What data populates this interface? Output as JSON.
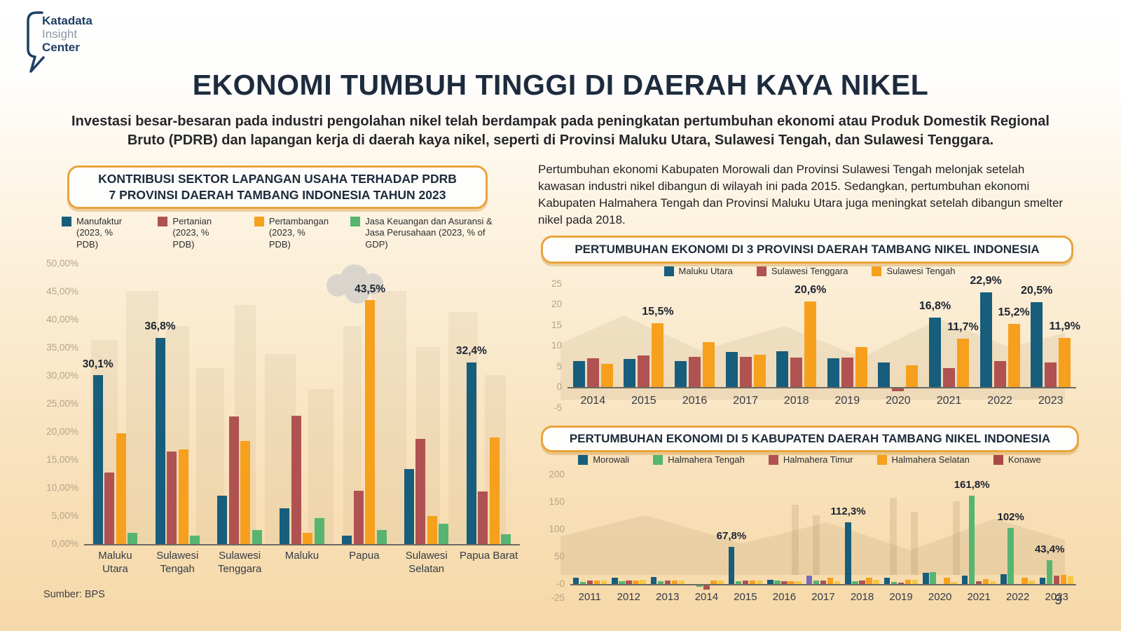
{
  "logo": {
    "line1": "Katadata",
    "line2": "Insight",
    "line3": "Center"
  },
  "header": {
    "title": "EKONOMI TUMBUH TINGGI DI DAERAH KAYA NIKEL",
    "subtitle": "Investasi besar-besaran pada industri pengolahan nikel telah berdampak pada peningkatan pertumbuhan ekonomi atau Produk Domestik Regional Bruto (PDRB) dan lapangan kerja di daerah kaya nikel, seperti di Provinsi Maluku Utara, Sulawesi Tengah, dan Sulawesi Tenggara."
  },
  "right_panel": {
    "paragraph": "Pertumbuhan ekonomi Kabupaten Morowali dan Provinsi Sulawesi Tengah melonjak setelah kawasan industri nikel dibangun di wilayah ini pada 2015. Sedangkan, pertumbuhan ekonomi Kabupaten Halmahera Tengah dan Provinsi Maluku Utara juga meningkat setelah dibangun smelter nikel pada 2018."
  },
  "footer": {
    "source": "Sumber: BPS",
    "page_number": "9"
  },
  "colors": {
    "navy_text": "#1d2b3c",
    "box_border": "#e9a43c",
    "bar_blue": "#175d7c",
    "bar_maroon": "#b05251",
    "bar_orange": "#f6a01d",
    "bar_green": "#57b571",
    "bar_yellow": "#f5c843",
    "bar_purple": "#7a6bc0",
    "konawe_legend_red": "#a84a44"
  },
  "chart_data": [
    {
      "id": "chart-pdrb",
      "type": "bar",
      "title": "KONTRIBUSI SEKTOR LAPANGAN USAHA TERHADAP PDRB",
      "title_line2": "7 PROVINSI DAERAH TAMBANG INDONESIA TAHUN 2023",
      "ylim": [
        0,
        50
      ],
      "grid": false,
      "legend_position": "top",
      "yticks": [
        {
          "label": "50,00%",
          "v": 50
        },
        {
          "label": "45,00%",
          "v": 45
        },
        {
          "label": "40,00%",
          "v": 40
        },
        {
          "label": "35,00%",
          "v": 35
        },
        {
          "label": "30,00%",
          "v": 30
        },
        {
          "label": "25,00%",
          "v": 25
        },
        {
          "label": "20,00%",
          "v": 20
        },
        {
          "label": "15,00%",
          "v": 15
        },
        {
          "label": "10,00%",
          "v": 10
        },
        {
          "label": "5,00%",
          "v": 5
        },
        {
          "label": "0,00%",
          "v": 0
        }
      ],
      "categories": [
        "Maluku Utara",
        "Sulawesi Tengah",
        "Sulawesi Tenggara",
        "Maluku",
        "Papua",
        "Sulawesi Selatan",
        "Papua Barat"
      ],
      "series": [
        {
          "name": "Manufaktur",
          "sub": "(2023, % PDB)",
          "color": "#175d7c",
          "values": [
            30.1,
            36.8,
            8.6,
            6.4,
            1.5,
            13.4,
            32.4
          ]
        },
        {
          "name": "Pertanian",
          "sub": "(2023, % PDB)",
          "color": "#b05251",
          "values": [
            12.8,
            16.5,
            22.7,
            22.9,
            9.5,
            18.8,
            9.4
          ]
        },
        {
          "name": "Pertambangan",
          "sub": "(2023, % PDB)",
          "color": "#f6a01d",
          "values": [
            19.7,
            16.9,
            18.4,
            2.0,
            43.5,
            5.0,
            19.0
          ]
        },
        {
          "name": "Jasa Keuangan dan Asuransi &",
          "sub": "Jasa Perusahaan (2023, % of GDP)",
          "color": "#57b571",
          "values": [
            2.0,
            1.5,
            2.5,
            4.6,
            2.5,
            3.6,
            1.8
          ]
        }
      ],
      "annotations": [
        {
          "ci": 0,
          "si": 0,
          "text": "30,1%"
        },
        {
          "ci": 1,
          "si": 0,
          "text": "36,8%"
        },
        {
          "ci": 4,
          "si": 2,
          "text": "43,5%"
        },
        {
          "ci": 6,
          "si": 0,
          "text": "32,4%"
        }
      ]
    },
    {
      "id": "chart-3provinsi",
      "type": "bar",
      "title": "PERTUMBUHAN EKONOMI DI 3 PROVINSI DAERAH TAMBANG NIKEL INDONESIA",
      "ylim": [
        -5,
        25
      ],
      "grid": false,
      "legend_position": "top",
      "yticks": [
        {
          "label": "25",
          "v": 25
        },
        {
          "label": "20",
          "v": 20
        },
        {
          "label": "15",
          "v": 15
        },
        {
          "label": "10",
          "v": 10
        },
        {
          "label": "5",
          "v": 5
        },
        {
          "label": "0",
          "v": 0
        },
        {
          "label": "-5",
          "v": -5
        }
      ],
      "categories": [
        "2014",
        "2015",
        "2016",
        "2017",
        "2018",
        "2019",
        "2020",
        "2021",
        "2022",
        "2023"
      ],
      "series": [
        {
          "name": "Maluku Utara",
          "color": "#175d7c",
          "values": [
            6.2,
            6.8,
            6.3,
            8.5,
            8.6,
            6.9,
            5.9,
            16.8,
            22.9,
            20.5
          ]
        },
        {
          "name": "Sulawesi Tenggara",
          "color": "#b05251",
          "values": [
            7.0,
            7.6,
            7.3,
            7.3,
            7.1,
            7.2,
            -0.6,
            4.6,
            6.2,
            5.9
          ]
        },
        {
          "name": "Sulawesi Tengah",
          "color": "#f6a01d",
          "values": [
            5.6,
            15.5,
            10.9,
            7.8,
            20.6,
            9.7,
            5.3,
            11.7,
            15.2,
            11.9
          ]
        }
      ],
      "annotations": [
        {
          "ci": 1,
          "si": 2,
          "text": "15,5%"
        },
        {
          "ci": 4,
          "si": 2,
          "text": "20,6%"
        },
        {
          "ci": 7,
          "si": 0,
          "text": "16,8%"
        },
        {
          "ci": 7,
          "si": 2,
          "text": "11,7%"
        },
        {
          "ci": 8,
          "si": 0,
          "text": "22,9%"
        },
        {
          "ci": 8,
          "si": 2,
          "text": "15,2%"
        },
        {
          "ci": 9,
          "si": 0,
          "text": "20,5%"
        },
        {
          "ci": 9,
          "si": 2,
          "text": "11,9%"
        }
      ]
    },
    {
      "id": "chart-5kabupaten",
      "type": "bar",
      "title": "PERTUMBUHAN EKONOMI DI 5 KABUPATEN DAERAH TAMBANG NIKEL INDONESIA",
      "ylim": [
        -25,
        200
      ],
      "grid": false,
      "legend_position": "top",
      "yticks": [
        {
          "label": "200",
          "v": 200
        },
        {
          "label": "150",
          "v": 150
        },
        {
          "label": "100",
          "v": 100
        },
        {
          "label": "50",
          "v": 50
        },
        {
          "label": "-0",
          "v": 0
        },
        {
          "label": "-25",
          "v": -25
        }
      ],
      "categories": [
        "2011",
        "2012",
        "2013",
        "2014",
        "2015",
        "2016",
        "2017",
        "2018",
        "2019",
        "2020",
        "2021",
        "2022",
        "2023"
      ],
      "series": [
        {
          "name": "Morowali",
          "color": "#175d7c",
          "values": [
            12,
            12,
            13,
            0,
            67.8,
            8,
            15,
            112.3,
            12,
            20,
            16,
            18,
            12
          ]
        },
        {
          "name": "Halmahera Tengah",
          "color": "#57b571",
          "values": [
            4,
            5,
            5,
            -3,
            5,
            7,
            6,
            5,
            4,
            22,
            161.8,
            102,
            43.4
          ]
        },
        {
          "name": "Halmahera Timur",
          "color": "#b05251",
          "values": [
            6,
            6,
            6,
            -8,
            6,
            5,
            7,
            6,
            3,
            0,
            5,
            0,
            15
          ]
        },
        {
          "name": "Halmahera Selatan",
          "color": "#f6a01d",
          "values": [
            6,
            6,
            6,
            6,
            6,
            5,
            12,
            12,
            8,
            12,
            9,
            12,
            17
          ]
        },
        {
          "name": "Konawe",
          "color": "#f5c843",
          "legend_color": "#a84a44",
          "values": [
            7,
            8,
            6,
            7,
            6,
            5,
            5,
            8,
            8,
            4,
            5,
            7,
            14
          ]
        }
      ],
      "overrides": [
        {
          "ci": 6,
          "si": 0,
          "color": "#7a6bc0"
        }
      ],
      "annotations": [
        {
          "ci": 4,
          "si": 0,
          "text": "67,8%"
        },
        {
          "ci": 7,
          "si": 0,
          "text": "112,3%"
        },
        {
          "ci": 10,
          "si": 1,
          "text": "161,8%"
        },
        {
          "ci": 11,
          "si": 1,
          "text": "102%"
        },
        {
          "ci": 12,
          "si": 1,
          "text": "43,4%"
        }
      ]
    }
  ]
}
